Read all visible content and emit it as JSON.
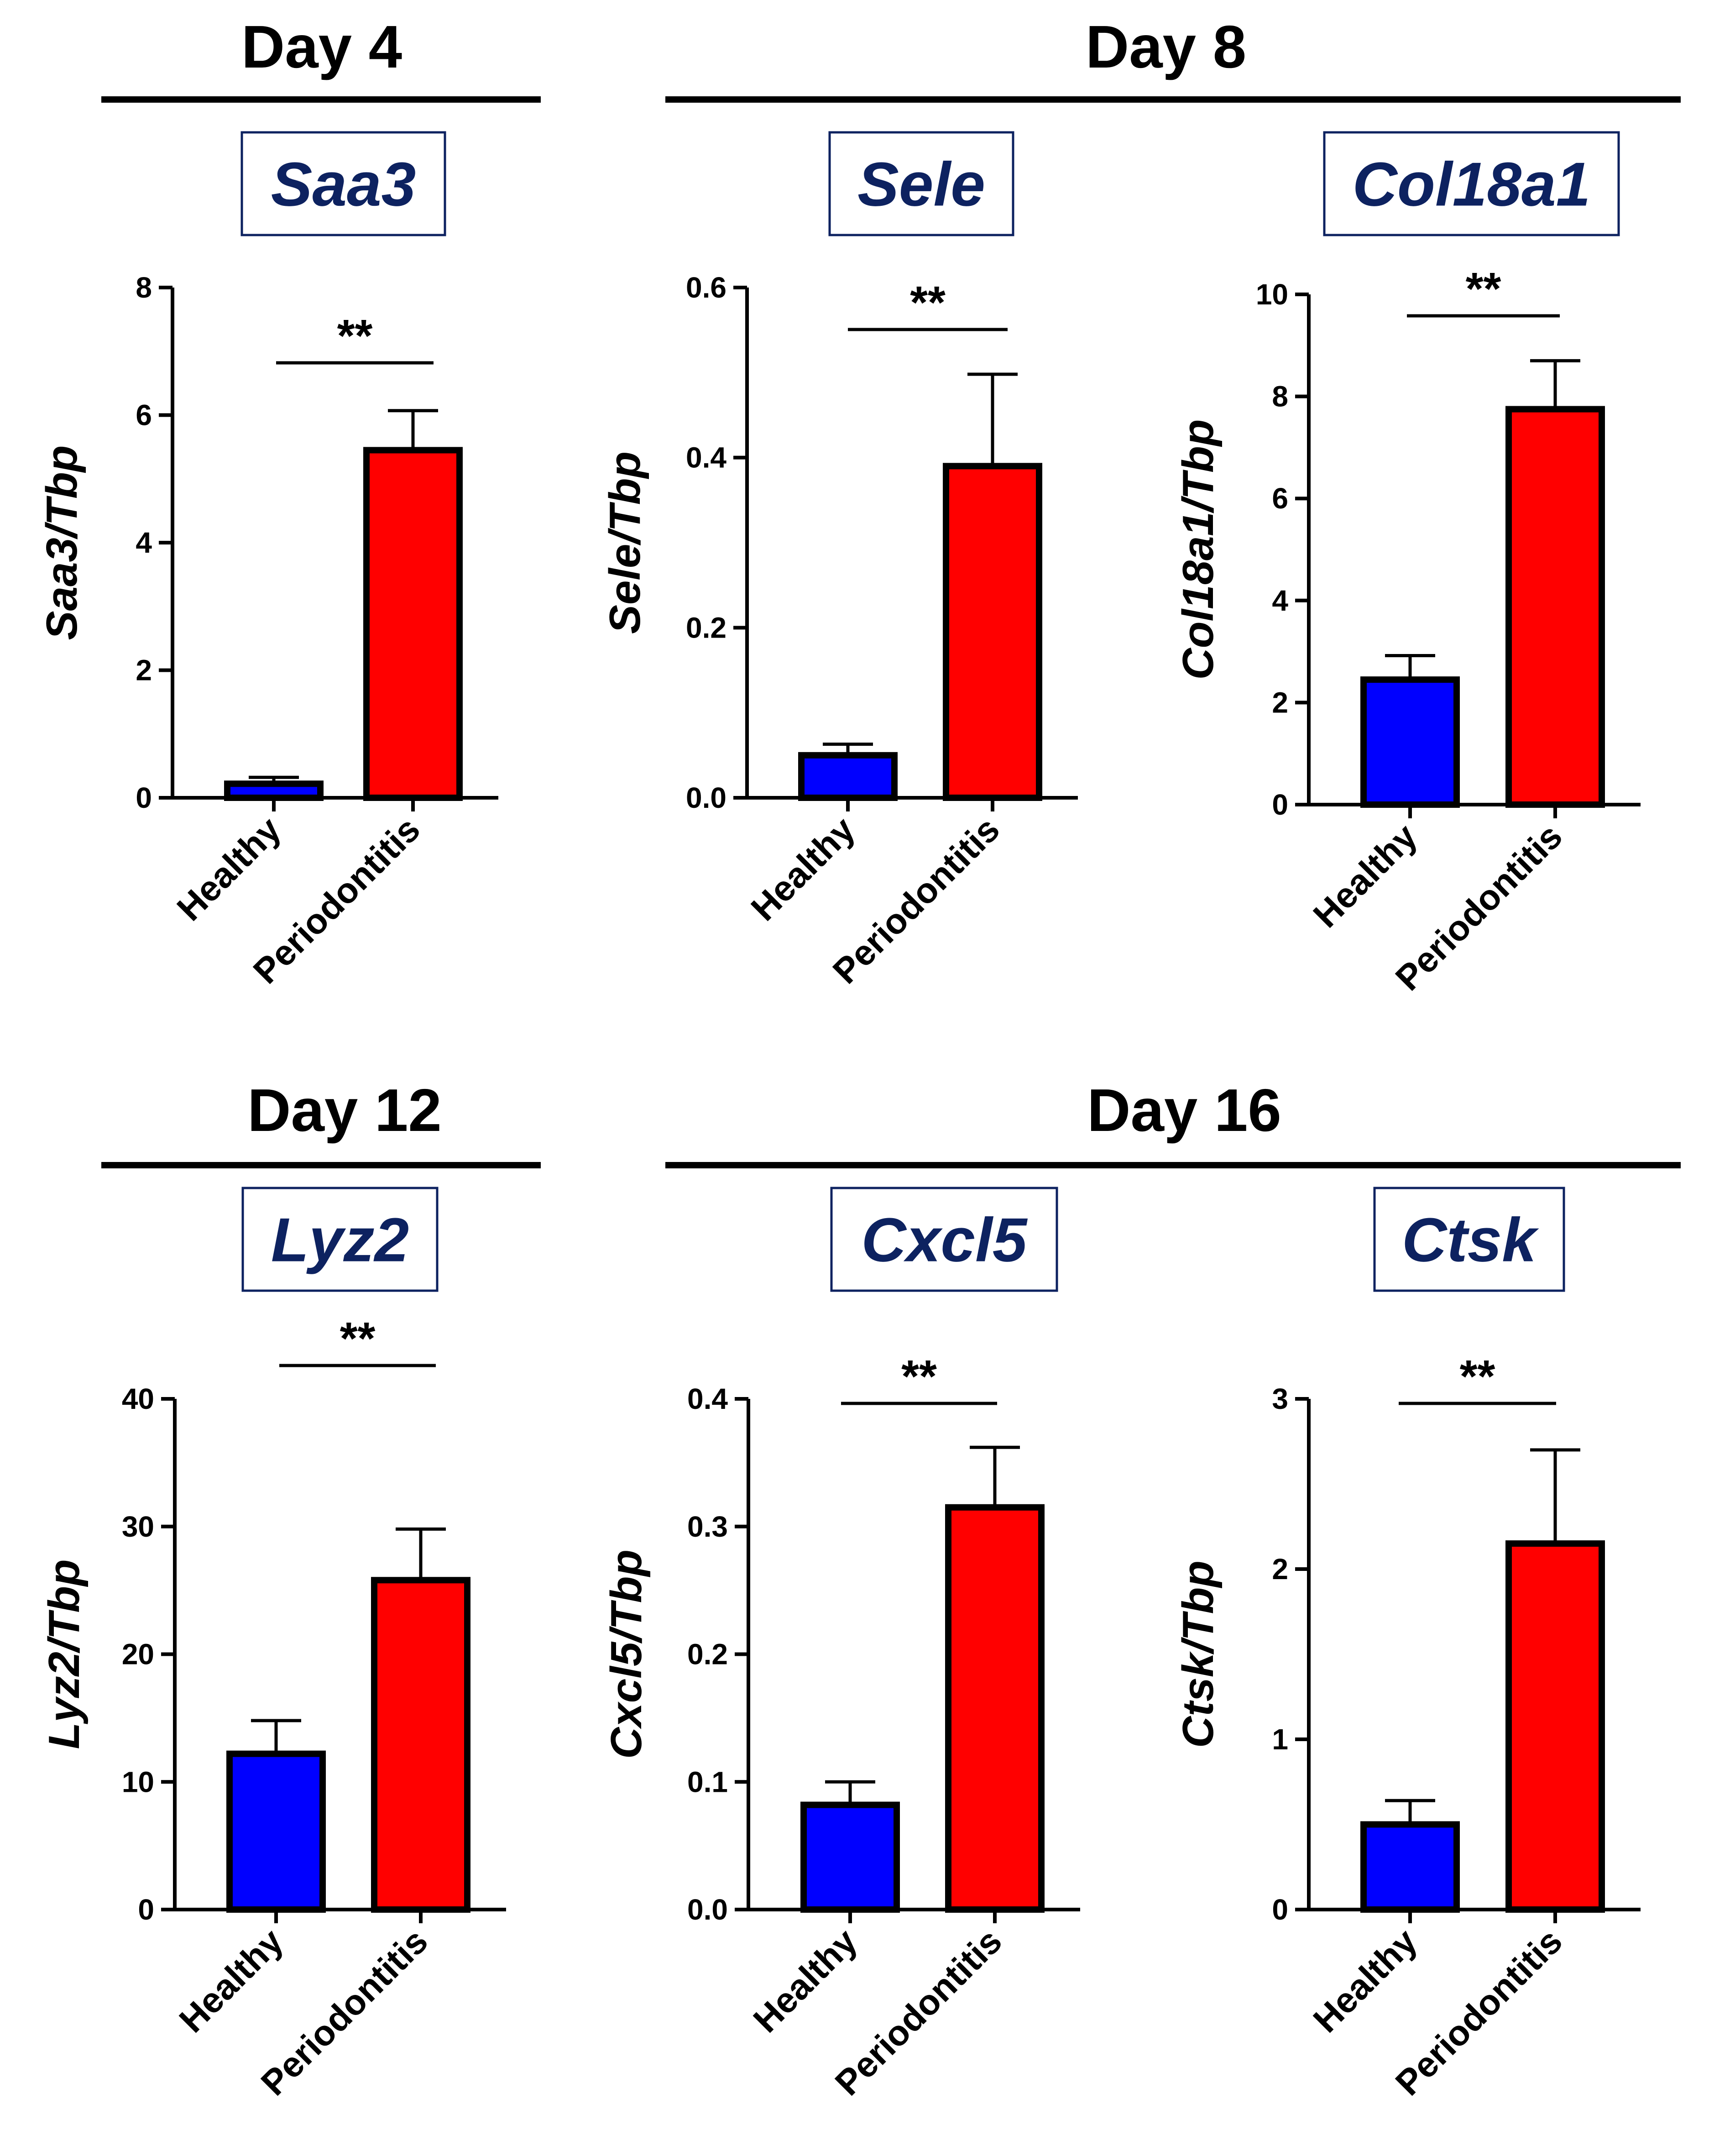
{
  "figure": {
    "days": [
      {
        "id": "day4",
        "label": "Day 4"
      },
      {
        "id": "day8",
        "label": "Day 8"
      },
      {
        "id": "day12",
        "label": "Day 12"
      },
      {
        "id": "day16",
        "label": "Day 16"
      }
    ]
  },
  "colors": {
    "healthy": "#0000ff",
    "periodontitis": "#ff0000",
    "gene_label": "#0d2260",
    "axis": "#000000"
  },
  "chart_data": [
    {
      "type": "bar",
      "title": "Saa3",
      "ylabel": "Saa3/Tbp",
      "categories": [
        "Healthy",
        "Periodontitis"
      ],
      "values": [
        0.22,
        5.45
      ],
      "errors": [
        0.1,
        0.62
      ],
      "ylim": [
        0,
        8
      ],
      "yticks": [
        "0",
        "2",
        "4",
        "6",
        "8"
      ],
      "significance": "**"
    },
    {
      "type": "bar",
      "title": "Sele",
      "ylabel": "Sele/Tbp",
      "categories": [
        "Healthy",
        "Periodontitis"
      ],
      "values": [
        0.05,
        0.39
      ],
      "errors": [
        0.013,
        0.108
      ],
      "ylim": [
        0,
        0.6
      ],
      "yticks": [
        "0.0",
        "0.2",
        "0.4",
        "0.6"
      ],
      "significance": "**"
    },
    {
      "type": "bar",
      "title": "Col18a1",
      "ylabel": "Col18a1/Tbp",
      "categories": [
        "Healthy",
        "Periodontitis"
      ],
      "values": [
        2.45,
        7.75
      ],
      "errors": [
        0.47,
        0.95
      ],
      "ylim": [
        0,
        10
      ],
      "yticks": [
        "0",
        "2",
        "4",
        "6",
        "8",
        "10"
      ],
      "significance": "**"
    },
    {
      "type": "bar",
      "title": "Lyz2",
      "ylabel": "Lyz2/Tbp",
      "categories": [
        "Healthy",
        "Periodontitis"
      ],
      "values": [
        12.2,
        25.8
      ],
      "errors": [
        2.6,
        4.0
      ],
      "ylim": [
        0,
        40
      ],
      "yticks": [
        "0",
        "10",
        "20",
        "30",
        "40"
      ],
      "significance": "**"
    },
    {
      "type": "bar",
      "title": "Cxcl5",
      "ylabel": "Cxcl5/Tbp",
      "categories": [
        "Healthy",
        "Periodontitis"
      ],
      "values": [
        0.082,
        0.315
      ],
      "errors": [
        0.018,
        0.047
      ],
      "ylim": [
        0,
        0.4
      ],
      "yticks": [
        "0.0",
        "0.1",
        "0.2",
        "0.3",
        "0.4"
      ],
      "significance": "**"
    },
    {
      "type": "bar",
      "title": "Ctsk",
      "ylabel": "Ctsk/Tbp",
      "categories": [
        "Healthy",
        "Periodontitis"
      ],
      "values": [
        0.5,
        2.15
      ],
      "errors": [
        0.14,
        0.55
      ],
      "ylim": [
        0,
        3
      ],
      "yticks": [
        "0",
        "1",
        "2",
        "3"
      ],
      "significance": "**"
    }
  ]
}
